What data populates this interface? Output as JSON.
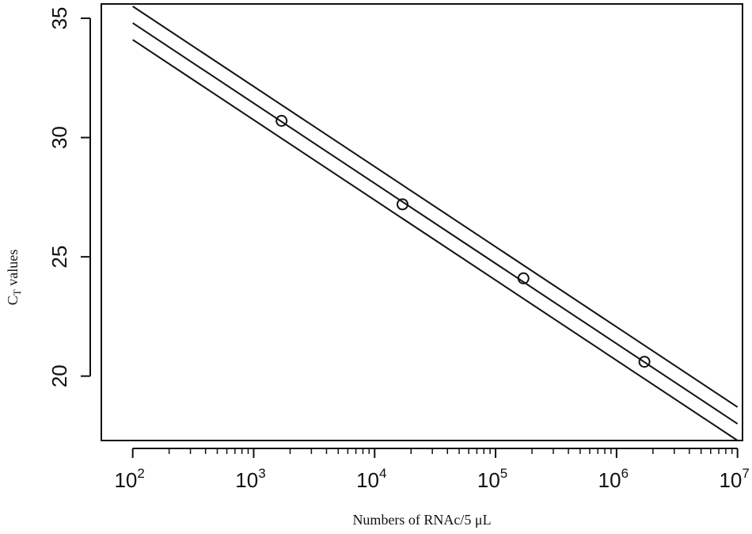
{
  "chart_data": {
    "type": "line",
    "xlabel": "Numbers  of RNAc/5 μL",
    "ylabel_main": "C",
    "ylabel_sub": "T",
    "ylabel_rest": " values",
    "x_scale": "log10",
    "xlim": [
      55,
      11000000
    ],
    "ylim": [
      17.3,
      35.6
    ],
    "x_ticks": [
      {
        "value": 100,
        "base": "10",
        "exp": "2"
      },
      {
        "value": 1000,
        "base": "10",
        "exp": "3"
      },
      {
        "value": 10000,
        "base": "10",
        "exp": "4"
      },
      {
        "value": 100000,
        "base": "10",
        "exp": "5"
      },
      {
        "value": 1000000,
        "base": "10",
        "exp": "6"
      },
      {
        "value": 10000000,
        "base": "10",
        "exp": "7"
      }
    ],
    "y_ticks": [
      {
        "value": 20,
        "label": "20"
      },
      {
        "value": 25,
        "label": "25"
      },
      {
        "value": 30,
        "label": "30"
      },
      {
        "value": 35,
        "label": "35"
      }
    ],
    "points": [
      {
        "x": 1700,
        "y": 30.7
      },
      {
        "x": 17000,
        "y": 27.2
      },
      {
        "x": 170000,
        "y": 24.1
      },
      {
        "x": 1700000,
        "y": 20.6
      }
    ],
    "series": [
      {
        "x": [
          100,
          10000000
        ],
        "y": [
          35.5,
          18.7
        ]
      },
      {
        "x": [
          100,
          10000000
        ],
        "y": [
          34.8,
          18.0
        ]
      },
      {
        "x": [
          100,
          10000000
        ],
        "y": [
          34.1,
          17.3
        ]
      }
    ],
    "grid": false,
    "legend": false
  }
}
